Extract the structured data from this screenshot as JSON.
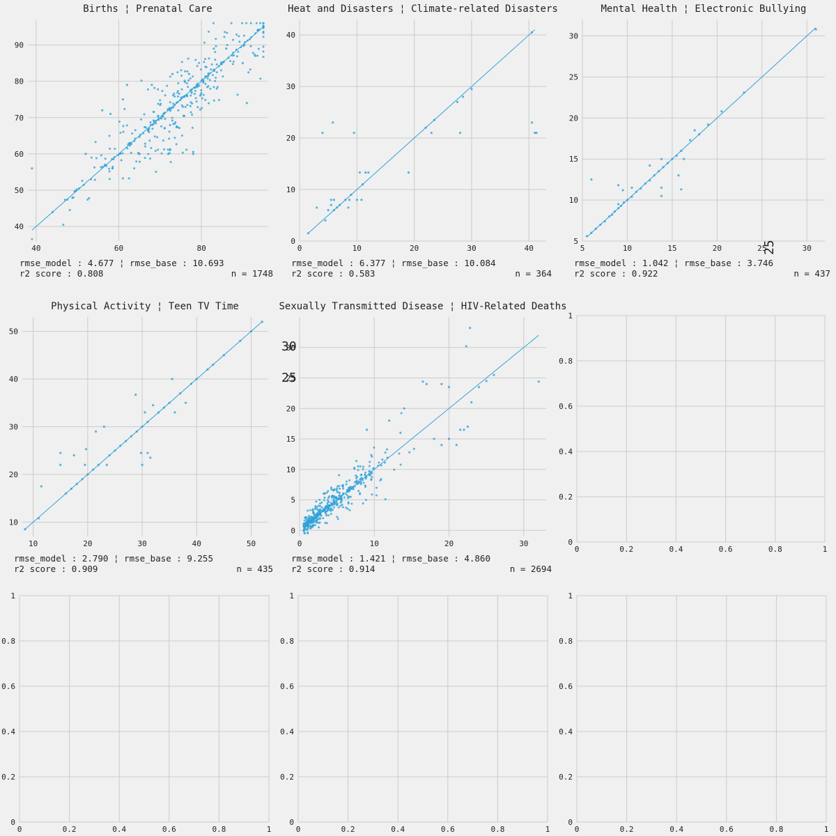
{
  "chart_data": [
    {
      "type": "scatter",
      "title": "Births ¦ Prenatal Care",
      "xlim": [
        38,
        96
      ],
      "ylim": [
        36,
        97
      ],
      "xticks": [
        40,
        60,
        80
      ],
      "yticks": [
        40,
        50,
        60,
        70,
        80,
        90
      ],
      "stats": {
        "line1": "rmse_model : 4.677 ¦ rmse_base : 10.693",
        "line2": "r2 score : 0.808",
        "n": "n = 1748"
      },
      "reference_line": [
        39,
        95
      ],
      "scatter": {
        "seed": 11,
        "count": 360,
        "min": 39,
        "max": 95,
        "center": 75,
        "spread": 12,
        "noise": 5.5,
        "low_tail": [
          55,
          72
        ]
      },
      "points": [
        [
          39,
          56
        ],
        [
          44,
          44
        ],
        [
          49,
          48
        ],
        [
          52,
          60
        ],
        [
          56,
          72
        ],
        [
          58,
          71
        ],
        [
          62,
          79
        ],
        [
          68,
          79
        ],
        [
          73,
          82
        ],
        [
          77,
          82
        ],
        [
          83,
          89
        ],
        [
          86,
          89
        ],
        [
          90,
          85
        ],
        [
          91,
          74
        ],
        [
          93,
          87
        ],
        [
          95,
          95
        ],
        [
          78,
          60
        ],
        [
          72,
          60
        ],
        [
          65,
          60
        ],
        [
          61,
          75
        ]
      ]
    },
    {
      "type": "scatter",
      "title": "Heat and Disasters ¦ Climate-related  Disasters",
      "xlim": [
        0,
        43
      ],
      "ylim": [
        0,
        43
      ],
      "xticks": [
        0,
        10,
        20,
        30,
        40
      ],
      "yticks": [
        0,
        10,
        20,
        30,
        40
      ],
      "stats": {
        "line1": "rmse_model : 6.377 ¦ rmse_base : 10.084",
        "line2": "r2 score : 0.583",
        "n": "n = 364"
      },
      "reference_line": [
        1.5,
        41
      ],
      "points": [
        [
          1.5,
          1.5
        ],
        [
          3,
          6.5
        ],
        [
          4,
          21
        ],
        [
          4.5,
          4
        ],
        [
          5,
          6
        ],
        [
          5.5,
          8
        ],
        [
          5.5,
          7
        ],
        [
          5.8,
          23
        ],
        [
          6,
          8
        ],
        [
          6,
          6
        ],
        [
          6.5,
          6.5
        ],
        [
          7,
          7
        ],
        [
          8,
          8
        ],
        [
          8.5,
          6.5
        ],
        [
          8.7,
          8
        ],
        [
          9,
          9
        ],
        [
          9.5,
          21
        ],
        [
          10,
          8
        ],
        [
          10.5,
          13.3
        ],
        [
          10.8,
          8
        ],
        [
          11,
          11
        ],
        [
          11.5,
          13.3
        ],
        [
          12,
          13.3
        ],
        [
          19,
          13.3
        ],
        [
          22,
          22
        ],
        [
          23,
          21
        ],
        [
          23.5,
          23.5
        ],
        [
          28,
          21
        ],
        [
          28.5,
          28
        ],
        [
          30,
          29.5
        ],
        [
          27.5,
          27
        ],
        [
          40.5,
          23
        ],
        [
          41,
          21
        ],
        [
          41.3,
          21
        ],
        [
          40.5,
          40.5
        ]
      ]
    },
    {
      "type": "scatter",
      "title": "Mental Health ¦ Electronic Bullying",
      "xlim": [
        5,
        32
      ],
      "ylim": [
        5,
        32
      ],
      "xticks": [
        5,
        10,
        15,
        20,
        25,
        30
      ],
      "yticks": [
        5,
        10,
        15,
        20,
        25,
        30
      ],
      "stats": {
        "line1": "rmse_model : 1.042 ¦ rmse_base : 3.746",
        "line2": "r2 score : 0.922",
        "n": "n = 437"
      },
      "reference_line": [
        5.5,
        31
      ],
      "points": [
        [
          5.5,
          5.6
        ],
        [
          6,
          6
        ],
        [
          6.5,
          6.5
        ],
        [
          7,
          7
        ],
        [
          7.5,
          7.4
        ],
        [
          8,
          8
        ],
        [
          8.3,
          8.2
        ],
        [
          8.6,
          8.6
        ],
        [
          9,
          9
        ],
        [
          9.3,
          9.3
        ],
        [
          9.6,
          9.7
        ],
        [
          10,
          10
        ],
        [
          10.5,
          10.4
        ],
        [
          11,
          11
        ],
        [
          11.5,
          11.4
        ],
        [
          12,
          12
        ],
        [
          12.5,
          12.4
        ],
        [
          13,
          13
        ],
        [
          13.5,
          13.5
        ],
        [
          14,
          14
        ],
        [
          14.5,
          14.5
        ],
        [
          15,
          15
        ],
        [
          15.5,
          15.4
        ],
        [
          16,
          16
        ],
        [
          17,
          17.3
        ],
        [
          18,
          18
        ],
        [
          19,
          19.2
        ],
        [
          20.5,
          20.8
        ],
        [
          23,
          23.1
        ],
        [
          31,
          30.8
        ],
        [
          6,
          12.5
        ],
        [
          9,
          11.8
        ],
        [
          9,
          9.5
        ],
        [
          9.5,
          11.2
        ],
        [
          10.5,
          11.5
        ],
        [
          13.8,
          10.5
        ],
        [
          13.8,
          11.5
        ],
        [
          13.8,
          15
        ],
        [
          15.7,
          13
        ],
        [
          16,
          11.3
        ],
        [
          16.3,
          15
        ],
        [
          17.5,
          18.5
        ],
        [
          12.5,
          14.2
        ]
      ]
    },
    {
      "type": "scatter",
      "title": "Physical Activity ¦ Teen TV Time",
      "xlim": [
        8,
        53
      ],
      "ylim": [
        7,
        53
      ],
      "xticks": [
        10,
        20,
        30,
        40,
        50
      ],
      "yticks": [
        10,
        20,
        30,
        40,
        50
      ],
      "stats": {
        "line1": "rmse_model : 2.790 ¦ rmse_base : 9.255",
        "line2": "r2 score : 0.909",
        "n": "n = 435"
      },
      "reference_line": [
        8.5,
        52
      ],
      "points": [
        [
          8.5,
          8.5
        ],
        [
          11,
          10.8
        ],
        [
          11.5,
          17.5
        ],
        [
          15,
          24.5
        ],
        [
          15,
          22
        ],
        [
          16,
          16
        ],
        [
          17,
          17
        ],
        [
          17.5,
          24
        ],
        [
          18,
          18
        ],
        [
          19,
          19
        ],
        [
          19.5,
          22
        ],
        [
          19.7,
          25.3
        ],
        [
          20,
          20
        ],
        [
          21,
          21
        ],
        [
          21.5,
          29
        ],
        [
          22,
          22
        ],
        [
          23,
          30
        ],
        [
          23.5,
          22
        ],
        [
          24,
          24
        ],
        [
          25,
          25
        ],
        [
          26,
          26
        ],
        [
          27,
          27
        ],
        [
          28,
          28
        ],
        [
          28.8,
          36.7
        ],
        [
          29,
          29
        ],
        [
          29.8,
          24.5
        ],
        [
          30,
          30
        ],
        [
          30,
          22
        ],
        [
          30.5,
          33
        ],
        [
          31,
          24.5
        ],
        [
          31,
          31
        ],
        [
          31.5,
          23.5
        ],
        [
          32,
          34.5
        ],
        [
          33,
          33
        ],
        [
          34,
          34
        ],
        [
          35,
          35
        ],
        [
          35.5,
          40
        ],
        [
          36,
          33
        ],
        [
          37,
          37
        ],
        [
          38,
          35
        ],
        [
          39,
          39
        ],
        [
          40,
          40
        ],
        [
          42,
          42
        ],
        [
          43,
          43
        ],
        [
          45,
          45
        ],
        [
          48,
          48
        ],
        [
          50,
          50
        ],
        [
          52,
          52
        ]
      ]
    },
    {
      "type": "scatter",
      "title": "Sexually Transmitted Disease ¦ HIV-Related Deaths",
      "xlim": [
        0,
        33
      ],
      "ylim": [
        -1,
        35
      ],
      "xticks": [
        0,
        10,
        20,
        30
      ],
      "yticks": [
        0,
        5,
        10,
        15,
        20,
        25,
        30
      ],
      "stats": {
        "line1": "rmse_model : 1.421 ¦ rmse_base : 4.860",
        "line2": "r2 score : 0.914",
        "n": "n = 2694"
      },
      "reference_line": [
        0.5,
        32
      ],
      "scatter": {
        "seed": 29,
        "count": 420,
        "min": 0.5,
        "max": 18,
        "center": 3,
        "spread": 5,
        "noise": 1.6
      },
      "points": [
        [
          16.5,
          24.4
        ],
        [
          17,
          24
        ],
        [
          19,
          24
        ],
        [
          20,
          23.5
        ],
        [
          21.5,
          16.5
        ],
        [
          22,
          16.5
        ],
        [
          22.5,
          17
        ],
        [
          22.3,
          30.2
        ],
        [
          22.8,
          33.2
        ],
        [
          32,
          24.4
        ],
        [
          14,
          20
        ],
        [
          12,
          18
        ],
        [
          13.5,
          16
        ],
        [
          9,
          16.5
        ],
        [
          19,
          14
        ],
        [
          21,
          14
        ],
        [
          20,
          15
        ],
        [
          18,
          15
        ],
        [
          23,
          21
        ],
        [
          24,
          23.5
        ],
        [
          25,
          24.5
        ],
        [
          26,
          25.5
        ]
      ]
    },
    {
      "type": "scatter",
      "title": "",
      "xlim": [
        0,
        1
      ],
      "ylim": [
        0,
        1
      ],
      "xticks": [
        0,
        0.2,
        0.4,
        0.6,
        0.8,
        1
      ],
      "yticks": [
        0,
        0.2,
        0.4,
        0.6,
        0.8,
        1
      ],
      "empty": true
    },
    {
      "type": "scatter",
      "title": "",
      "xlim": [
        0,
        1
      ],
      "ylim": [
        0,
        1
      ],
      "xticks": [
        0,
        0.2,
        0.4,
        0.6,
        0.8,
        1
      ],
      "yticks": [
        0,
        0.2,
        0.4,
        0.6,
        0.8,
        1
      ],
      "empty": true
    },
    {
      "type": "scatter",
      "title": "",
      "xlim": [
        0,
        1
      ],
      "ylim": [
        0,
        1
      ],
      "xticks": [
        0,
        0.2,
        0.4,
        0.6,
        0.8,
        1
      ],
      "yticks": [
        0,
        0.2,
        0.4,
        0.6,
        0.8,
        1
      ],
      "empty": true
    },
    {
      "type": "scatter",
      "title": "",
      "xlim": [
        0,
        1
      ],
      "ylim": [
        0,
        1
      ],
      "xticks": [
        0,
        0.2,
        0.4,
        0.6,
        0.8,
        1
      ],
      "yticks": [
        0,
        0.2,
        0.4,
        0.6,
        0.8,
        1
      ],
      "empty": true
    }
  ],
  "stray_labels": [
    {
      "text": "25",
      "panel": 2,
      "at": "right-bottom",
      "vertical": true
    },
    {
      "text": "30",
      "panel": 4,
      "at": "y-axis-upper"
    },
    {
      "text": "25",
      "panel": 4,
      "at": "y-axis-upper"
    }
  ]
}
